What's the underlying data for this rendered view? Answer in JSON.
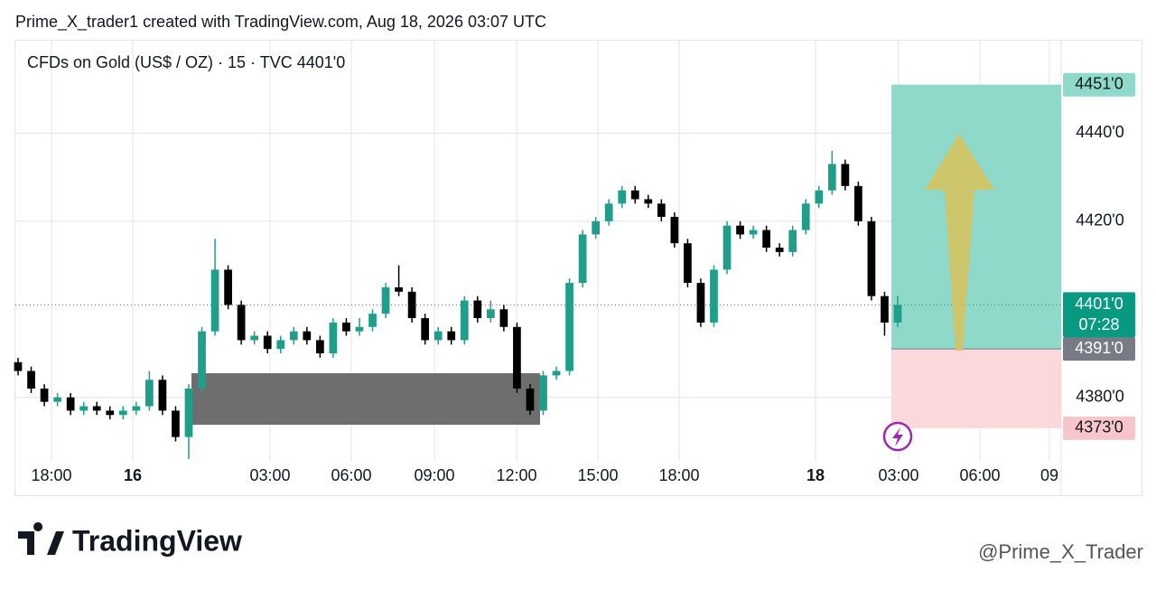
{
  "header": "Prime_X_trader1 created with TradingView.com, Aug 18, 2026 03:07 UTC",
  "chart_data": {
    "type": "candlestick",
    "title": "CFDs on Gold (US$ / OZ) · 15 · TVC  4401'0",
    "up_color": "#1f9e89",
    "down_color": "#000000",
    "grid": true,
    "ylim": [
      4366,
      4461
    ],
    "yticks": [
      {
        "value": 4440,
        "label": "4440'0"
      },
      {
        "value": 4420,
        "label": "4420'0"
      },
      {
        "value": 4380,
        "label": "4380'0"
      }
    ],
    "xticks": [
      "18:00",
      "16",
      "03:00",
      "06:00",
      "09:00",
      "12:00",
      "15:00",
      "18:00",
      "18",
      "03:00",
      "06:00",
      "09"
    ],
    "open": [
      4388,
      4386,
      4382,
      4379,
      4380,
      4377,
      4378,
      4377,
      4376,
      4377,
      4378,
      4384,
      4377,
      4371,
      4382,
      4395,
      4409,
      4401,
      4393,
      4394,
      4391,
      4393,
      4395,
      4393,
      4390,
      4397,
      4395,
      4396,
      4399,
      4405,
      4404,
      4398,
      4393,
      4395,
      4393,
      4402,
      4398,
      4400,
      4396,
      4382,
      4377,
      4385,
      4386,
      4406,
      4417,
      4420,
      4424,
      4427,
      4425,
      4424,
      4421,
      4415,
      4406,
      4397,
      4409,
      4419,
      4417,
      4418,
      4414,
      4413,
      4418,
      4424,
      4427,
      4433,
      4428,
      4420,
      4403,
      4397
    ],
    "high": [
      4389,
      4387,
      4383,
      4381,
      4381,
      4379,
      4379,
      4378,
      4378,
      4379,
      4386,
      4385,
      4378,
      4383,
      4396,
      4416,
      4410,
      4402,
      4395,
      4395,
      4394,
      4396,
      4396,
      4394,
      4398,
      4398,
      4398,
      4400,
      4406,
      4410,
      4405,
      4399,
      4396,
      4396,
      4403,
      4403,
      4402,
      4401,
      4397,
      4383,
      4386,
      4387,
      4407,
      4418,
      4421,
      4425,
      4428,
      4428,
      4426,
      4425,
      4422,
      4416,
      4407,
      4410,
      4420,
      4420,
      4419,
      4419,
      4415,
      4419,
      4425,
      4428,
      4436,
      4434,
      4429,
      4421,
      4404,
      4403
    ],
    "low": [
      4385,
      4381,
      4378,
      4378,
      4376,
      4376,
      4376,
      4375,
      4375,
      4376,
      4377,
      4376,
      4370,
      4366,
      4381,
      4394,
      4400,
      4392,
      4392,
      4390,
      4390,
      4392,
      4392,
      4389,
      4389,
      4394,
      4394,
      4395,
      4398,
      4403,
      4397,
      4392,
      4392,
      4392,
      4392,
      4397,
      4397,
      4395,
      4381,
      4376,
      4376,
      4384,
      4385,
      4405,
      4416,
      4419,
      4423,
      4424,
      4423,
      4420,
      4414,
      4405,
      4396,
      4396,
      4408,
      4416,
      4416,
      4413,
      4412,
      4412,
      4417,
      4423,
      4426,
      4427,
      4419,
      4402,
      4394,
      4396
    ],
    "close": [
      4386,
      4382,
      4379,
      4380,
      4377,
      4378,
      4377,
      4376,
      4377,
      4378,
      4384,
      4377,
      4371,
      4382,
      4395,
      4409,
      4401,
      4393,
      4394,
      4391,
      4393,
      4395,
      4393,
      4390,
      4397,
      4395,
      4396,
      4399,
      4405,
      4404,
      4398,
      4393,
      4395,
      4393,
      4402,
      4398,
      4400,
      4396,
      4382,
      4377,
      4385,
      4386,
      4406,
      4417,
      4420,
      4424,
      4427,
      4425,
      4424,
      4421,
      4415,
      4406,
      4397,
      4409,
      4419,
      4417,
      4418,
      4414,
      4413,
      4418,
      4424,
      4427,
      4433,
      4428,
      4420,
      4403,
      4397,
      4401
    ],
    "last_price": {
      "value": 4401,
      "label": "4401'0"
    },
    "countdown": "07:28",
    "position": {
      "take_profit": {
        "value": 4451,
        "label": "4451'0"
      },
      "entry": {
        "value": 4391,
        "label": "4391'0"
      },
      "stop_loss": {
        "value": 4373,
        "label": "4373'0"
      }
    }
  },
  "footer": {
    "logo": "TradingView",
    "watermark": "@Prime_X_Trader"
  }
}
